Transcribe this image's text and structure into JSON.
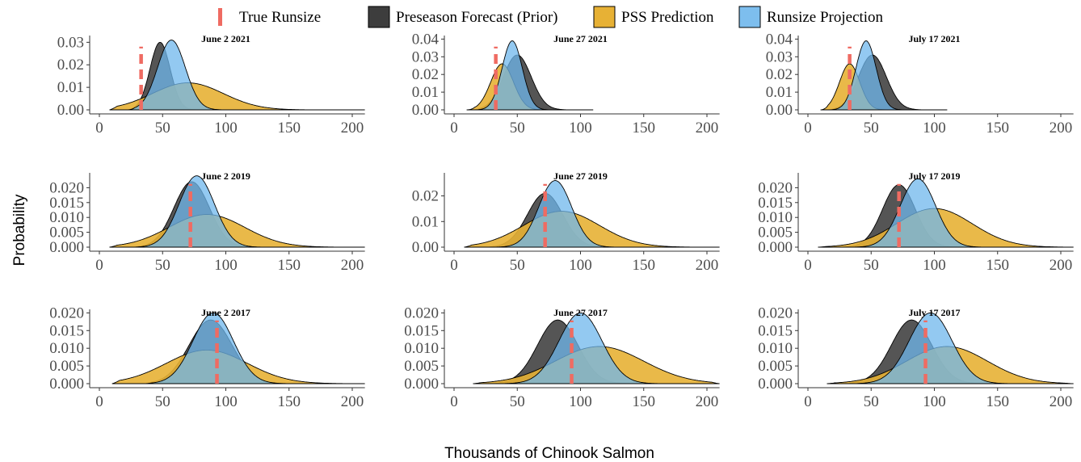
{
  "colors": {
    "prior": "#3d3d3d",
    "pss": "#e7b135",
    "proj": "#6fb7ec",
    "true": "#ef6b62"
  },
  "legend": [
    {
      "key": "true",
      "label": "True Runsize"
    },
    {
      "key": "prior",
      "label": "Preseason Forecast (Prior)"
    },
    {
      "key": "pss",
      "label": "PSS Prediction"
    },
    {
      "key": "proj",
      "label": "Runsize Projection"
    }
  ],
  "xlabel": "Thousands of Chinook Salmon",
  "ylabel": "Probability",
  "chart_data": [
    {
      "type": "area",
      "title": "June 2 2021",
      "xlim": [
        0,
        210
      ],
      "xticks": [
        0,
        50,
        100,
        150,
        200
      ],
      "ylim": [
        0,
        0.033
      ],
      "yticks": [
        0.0,
        0.01,
        0.02,
        0.03
      ],
      "ytick_labels": [
        "0.00",
        "0.01",
        "0.02",
        "0.03"
      ],
      "true_runsize": 33,
      "series": [
        {
          "key": "prior",
          "mean": 48,
          "sd": 8,
          "min": 20,
          "max": 105,
          "peak": 0.03
        },
        {
          "key": "pss",
          "mean": 70,
          "sd": 28,
          "min": 8,
          "max": 210,
          "peak": 0.012
        },
        {
          "key": "proj",
          "mean": 57,
          "sd": 11,
          "min": 22,
          "max": 115,
          "peak": 0.031
        }
      ]
    },
    {
      "type": "area",
      "title": "June 27 2021",
      "xlim": [
        0,
        210
      ],
      "xticks": [
        0,
        50,
        100,
        150,
        200
      ],
      "ylim": [
        0,
        0.042
      ],
      "yticks": [
        0.0,
        0.01,
        0.02,
        0.03,
        0.04
      ],
      "ytick_labels": [
        "0.00",
        "0.01",
        "0.02",
        "0.03",
        "0.04"
      ],
      "true_runsize": 33,
      "series": [
        {
          "key": "prior",
          "mean": 50,
          "sd": 11,
          "min": 15,
          "max": 110,
          "peak": 0.031
        },
        {
          "key": "pss",
          "mean": 38,
          "sd": 9,
          "min": 10,
          "max": 110,
          "peak": 0.026
        },
        {
          "key": "proj",
          "mean": 46,
          "sd": 8,
          "min": 15,
          "max": 110,
          "peak": 0.039
        }
      ]
    },
    {
      "type": "area",
      "title": "July 17 2021",
      "xlim": [
        0,
        210
      ],
      "xticks": [
        0,
        50,
        100,
        150,
        200
      ],
      "ylim": [
        0,
        0.042
      ],
      "yticks": [
        0.0,
        0.01,
        0.02,
        0.03,
        0.04
      ],
      "ytick_labels": [
        "0.00",
        "0.01",
        "0.02",
        "0.03",
        "0.04"
      ],
      "true_runsize": 33,
      "series": [
        {
          "key": "prior",
          "mean": 51,
          "sd": 11,
          "min": 15,
          "max": 110,
          "peak": 0.031
        },
        {
          "key": "pss",
          "mean": 33,
          "sd": 8,
          "min": 10,
          "max": 110,
          "peak": 0.026
        },
        {
          "key": "proj",
          "mean": 46,
          "sd": 8,
          "min": 15,
          "max": 110,
          "peak": 0.039
        }
      ]
    },
    {
      "type": "area",
      "title": "June 2 2019",
      "xlim": [
        0,
        210
      ],
      "xticks": [
        0,
        50,
        100,
        150,
        200
      ],
      "ylim": [
        0,
        0.025
      ],
      "yticks": [
        0.0,
        0.005,
        0.01,
        0.015,
        0.02
      ],
      "ytick_labels": [
        "0.000",
        "0.005",
        "0.010",
        "0.015",
        "0.020"
      ],
      "true_runsize": 72,
      "series": [
        {
          "key": "prior",
          "mean": 73,
          "sd": 14,
          "min": 25,
          "max": 150,
          "peak": 0.022
        },
        {
          "key": "pss",
          "mean": 85,
          "sd": 30,
          "min": 8,
          "max": 210,
          "peak": 0.011
        },
        {
          "key": "proj",
          "mean": 77,
          "sd": 14,
          "min": 25,
          "max": 150,
          "peak": 0.024
        }
      ]
    },
    {
      "type": "area",
      "title": "June 27 2019",
      "xlim": [
        0,
        210
      ],
      "xticks": [
        0,
        50,
        100,
        150,
        200
      ],
      "ylim": [
        0,
        0.029
      ],
      "yticks": [
        0.0,
        0.01,
        0.02
      ],
      "ytick_labels": [
        "0.00",
        "0.01",
        "0.02"
      ],
      "true_runsize": 72,
      "series": [
        {
          "key": "prior",
          "mean": 72,
          "sd": 14,
          "min": 25,
          "max": 150,
          "peak": 0.021
        },
        {
          "key": "pss",
          "mean": 85,
          "sd": 30,
          "min": 8,
          "max": 210,
          "peak": 0.014
        },
        {
          "key": "proj",
          "mean": 80,
          "sd": 13,
          "min": 25,
          "max": 150,
          "peak": 0.026
        }
      ]
    },
    {
      "type": "area",
      "title": "July 17 2019",
      "xlim": [
        0,
        210
      ],
      "xticks": [
        0,
        50,
        100,
        150,
        200
      ],
      "ylim": [
        0,
        0.025
      ],
      "yticks": [
        0.0,
        0.005,
        0.01,
        0.015,
        0.02
      ],
      "ytick_labels": [
        "0.000",
        "0.005",
        "0.010",
        "0.015",
        "0.020"
      ],
      "true_runsize": 72,
      "series": [
        {
          "key": "prior",
          "mean": 72,
          "sd": 13,
          "min": 25,
          "max": 150,
          "peak": 0.021
        },
        {
          "key": "pss",
          "mean": 100,
          "sd": 30,
          "min": 8,
          "max": 210,
          "peak": 0.013
        },
        {
          "key": "proj",
          "mean": 87,
          "sd": 14,
          "min": 25,
          "max": 150,
          "peak": 0.023
        }
      ]
    },
    {
      "type": "area",
      "title": "June 2 2017",
      "xlim": [
        0,
        210
      ],
      "xticks": [
        0,
        50,
        100,
        150,
        200
      ],
      "ylim": [
        0,
        0.021
      ],
      "yticks": [
        0.0,
        0.005,
        0.01,
        0.015,
        0.02
      ],
      "ytick_labels": [
        "0.000",
        "0.005",
        "0.010",
        "0.015",
        "0.020"
      ],
      "true_runsize": 93,
      "series": [
        {
          "key": "prior",
          "mean": 88,
          "sd": 17,
          "min": 35,
          "max": 180,
          "peak": 0.018
        },
        {
          "key": "pss",
          "mean": 85,
          "sd": 32,
          "min": 10,
          "max": 210,
          "peak": 0.0095
        },
        {
          "key": "proj",
          "mean": 90,
          "sd": 16,
          "min": 35,
          "max": 180,
          "peak": 0.02
        }
      ]
    },
    {
      "type": "area",
      "title": "June 27 2017",
      "xlim": [
        0,
        210
      ],
      "xticks": [
        0,
        50,
        100,
        150,
        200
      ],
      "ylim": [
        0,
        0.021
      ],
      "yticks": [
        0.0,
        0.005,
        0.01,
        0.015,
        0.02
      ],
      "ytick_labels": [
        "0.000",
        "0.005",
        "0.010",
        "0.015",
        "0.020"
      ],
      "true_runsize": 93,
      "series": [
        {
          "key": "prior",
          "mean": 82,
          "sd": 16,
          "min": 30,
          "max": 175,
          "peak": 0.018
        },
        {
          "key": "pss",
          "mean": 115,
          "sd": 35,
          "min": 15,
          "max": 210,
          "peak": 0.0105
        },
        {
          "key": "proj",
          "mean": 100,
          "sd": 17,
          "min": 35,
          "max": 180,
          "peak": 0.02
        }
      ]
    },
    {
      "type": "area",
      "title": "July 17 2017",
      "xlim": [
        0,
        210
      ],
      "xticks": [
        0,
        50,
        100,
        150,
        200
      ],
      "ylim": [
        0,
        0.021
      ],
      "yticks": [
        0.0,
        0.005,
        0.01,
        0.015,
        0.02
      ],
      "ytick_labels": [
        "0.000",
        "0.005",
        "0.010",
        "0.015",
        "0.020"
      ],
      "true_runsize": 93,
      "series": [
        {
          "key": "prior",
          "mean": 82,
          "sd": 16,
          "min": 30,
          "max": 175,
          "peak": 0.018
        },
        {
          "key": "pss",
          "mean": 110,
          "sd": 32,
          "min": 15,
          "max": 210,
          "peak": 0.0105
        },
        {
          "key": "proj",
          "mean": 97,
          "sd": 17,
          "min": 35,
          "max": 180,
          "peak": 0.02
        }
      ]
    }
  ]
}
